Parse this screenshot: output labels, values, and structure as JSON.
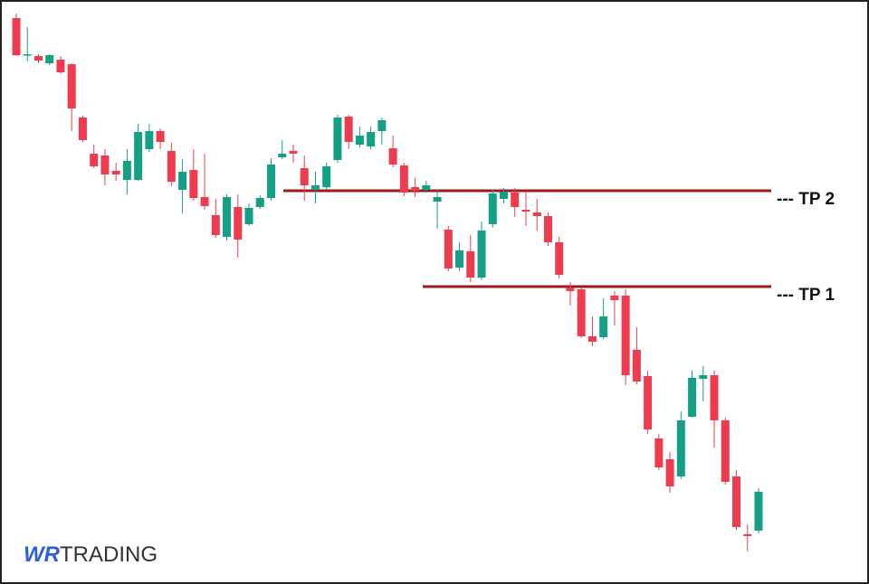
{
  "chart_data": {
    "type": "candlestick",
    "open": [
      626,
      586,
      584,
      576,
      580,
      575,
      516,
      476,
      474,
      457,
      447,
      447,
      481,
      501,
      479,
      436,
      458,
      428,
      408,
      384,
      417,
      398,
      417,
      427,
      472,
      479,
      460,
      436,
      439,
      469,
      517,
      486,
      484,
      501,
      482,
      463,
      439,
      436,
      423,
      392,
      350,
      368,
      339,
      398,
      426,
      433,
      414,
      411,
      407,
      378,
      328,
      326,
      274,
      273,
      319,
      319,
      259,
      230,
      161,
      138,
      119,
      185,
      227,
      231,
      181,
      119,
      55,
      59
    ],
    "high": [
      631,
      616,
      586,
      586,
      584,
      576,
      518,
      486,
      481,
      466,
      481,
      509,
      509,
      504,
      488,
      470,
      481,
      476,
      426,
      431,
      431,
      421,
      430,
      471,
      491,
      486,
      474,
      456,
      466,
      519,
      519,
      506,
      506,
      516,
      496,
      466,
      449,
      446,
      436,
      396,
      378,
      386,
      401,
      436,
      438,
      438,
      434,
      426,
      411,
      384,
      334,
      328,
      296,
      316,
      324,
      326,
      284,
      236,
      166,
      146,
      191,
      236,
      241,
      236,
      184,
      126,
      66,
      106
    ],
    "low": [
      584,
      578,
      576,
      574,
      564,
      501,
      489,
      460,
      441,
      446,
      431,
      446,
      478,
      481,
      440,
      410,
      424,
      414,
      383,
      380,
      361,
      396,
      415,
      424,
      470,
      466,
      424,
      421,
      436,
      466,
      481,
      483,
      481,
      486,
      461,
      429,
      428,
      433,
      393,
      346,
      346,
      334,
      336,
      394,
      421,
      406,
      396,
      391,
      374,
      338,
      308,
      272,
      263,
      271,
      286,
      220,
      221,
      166,
      126,
      101,
      116,
      184,
      202,
      151,
      110,
      60,
      36,
      56
    ],
    "close": [
      585,
      586,
      579,
      585,
      566,
      526,
      491,
      462,
      453,
      453,
      468,
      500,
      501,
      489,
      445,
      456,
      427,
      418,
      386,
      428,
      381,
      416,
      427,
      464,
      476,
      476,
      441,
      441,
      462,
      516,
      489,
      496,
      500,
      513,
      464,
      433,
      435,
      441,
      428,
      349,
      369,
      339,
      391,
      432,
      434,
      417,
      412,
      407,
      378,
      342,
      324,
      274,
      268,
      296,
      314,
      231,
      224,
      171,
      129,
      108,
      181,
      228,
      231,
      181,
      113,
      63,
      53,
      102
    ],
    "ylim": [
      0,
      646
    ],
    "up_color": "#13a085",
    "down_color": "#ef3b4e",
    "lines": [
      {
        "label": "--- TP 2",
        "value": 435,
        "color": "#9b1b1b"
      },
      {
        "label": "--- TP 1",
        "value": 329,
        "color": "#9b1b1b"
      }
    ]
  },
  "logo": {
    "brand": "WR",
    "name": "TRADING"
  }
}
